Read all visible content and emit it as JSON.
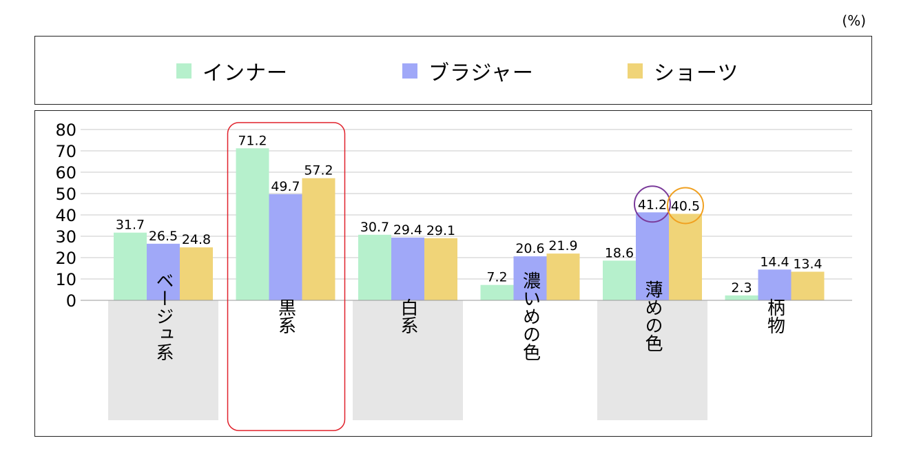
{
  "unit_label": "(%)",
  "colors": {
    "inner": "#b6f0cc",
    "bra": "#a0a8f8",
    "shorts": "#f0d478",
    "highlight_box": "#e0202a",
    "circle_purple": "#7a3a9a",
    "circle_orange": "#f0a020",
    "category_bg": "#e6e6e6",
    "grid": "#c8c8c8"
  },
  "chart_data": {
    "type": "bar",
    "categories": [
      "ベージュ系",
      "黒系",
      "白系",
      "濃いめの色",
      "薄めの色",
      "柄物"
    ],
    "series": [
      {
        "name": "インナー",
        "values": [
          31.7,
          71.2,
          30.7,
          7.2,
          18.6,
          2.3
        ]
      },
      {
        "name": "ブラジャー",
        "values": [
          26.5,
          49.7,
          29.4,
          20.6,
          41.2,
          14.4
        ]
      },
      {
        "name": "ショーツ",
        "values": [
          24.8,
          57.2,
          29.1,
          21.9,
          40.5,
          13.4
        ]
      }
    ],
    "ylim": [
      0,
      80
    ],
    "yticks": [
      0,
      10,
      20,
      30,
      40,
      50,
      60,
      70,
      80
    ],
    "grid": true,
    "legend_position": "top",
    "highlighted_category": "黒系",
    "circled_values": [
      {
        "category": "薄めの色",
        "series": "ブラジャー",
        "value": 41.2,
        "color": "purple"
      },
      {
        "category": "薄めの色",
        "series": "ショーツ",
        "value": 40.5,
        "color": "orange"
      }
    ]
  }
}
